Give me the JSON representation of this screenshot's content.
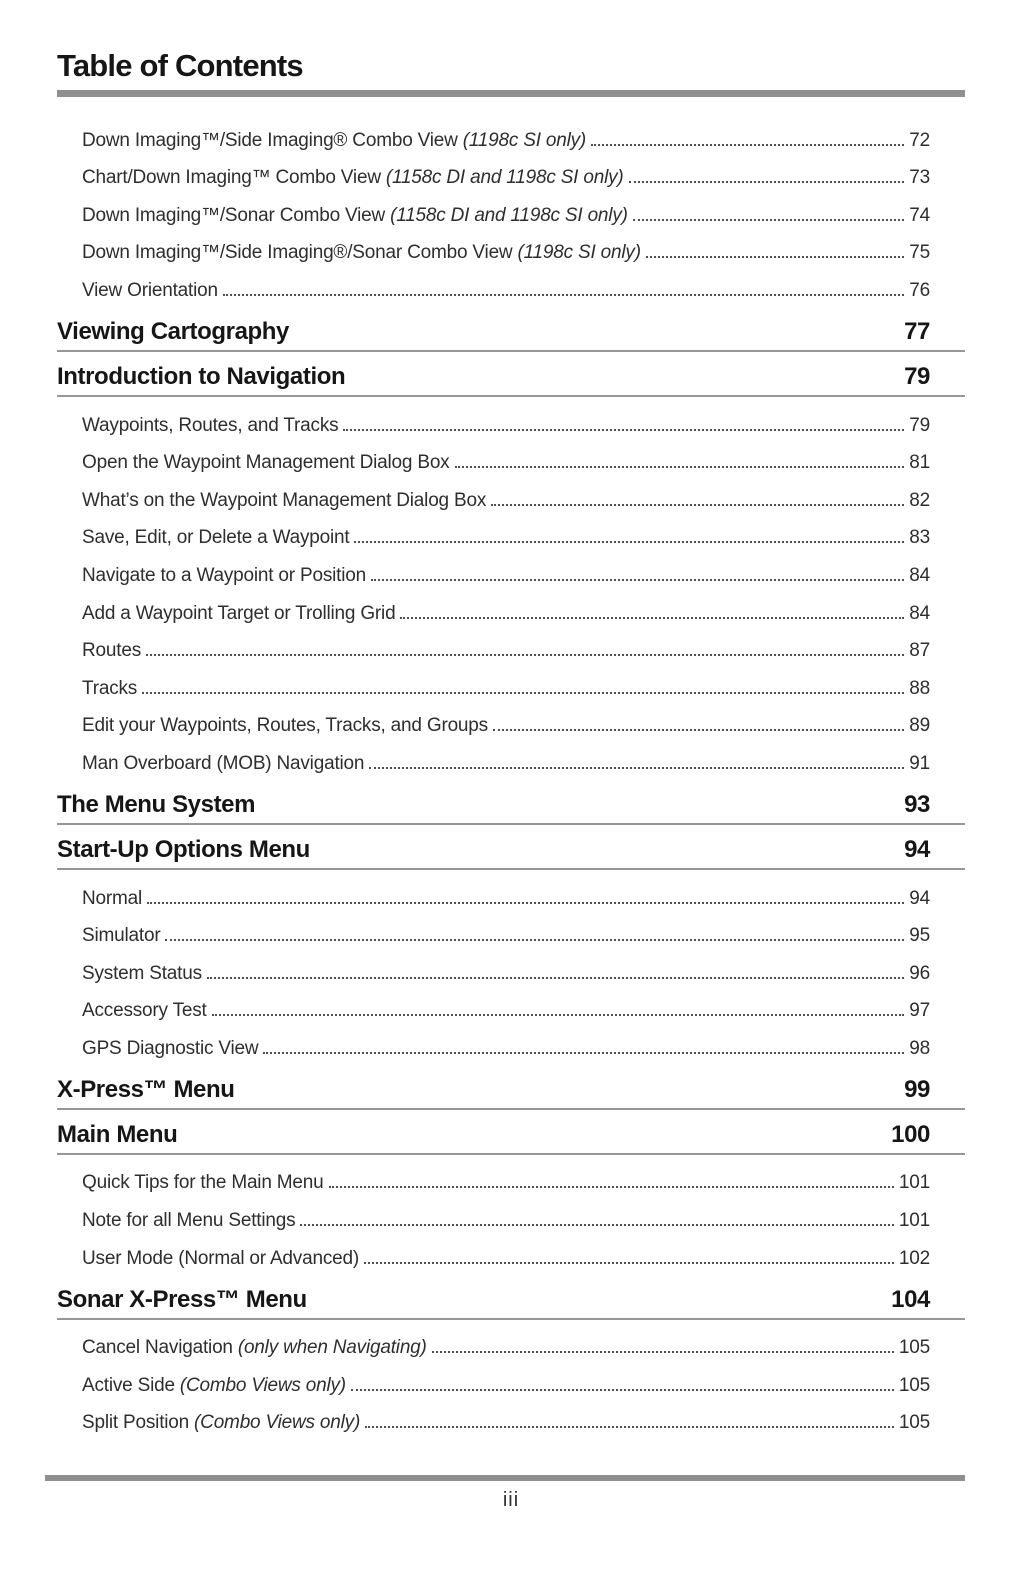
{
  "page": {
    "title": "Table of Contents",
    "footer_page_number": "iii"
  },
  "colors": {
    "rule_gray": "#8f8f8f",
    "text_black": "#161616",
    "entry_text": "#2e2e2e"
  },
  "toc": {
    "entries": [
      {
        "label": "Down Imaging™/Side Imaging® Combo View",
        "note": "(1198c SI only)",
        "page": "72"
      },
      {
        "label": "Chart/Down Imaging™ Combo View",
        "note": "(1158c DI and 1198c SI only)",
        "page": "73"
      },
      {
        "label": "Down Imaging™/Sonar Combo View",
        "note": "(1158c DI and 1198c SI only)",
        "page": "74"
      },
      {
        "label": "Down Imaging™/Side Imaging®/Sonar Combo View",
        "note": "(1198c SI only)",
        "page": "75"
      },
      {
        "label": "View Orientation",
        "note": "",
        "page": "76"
      },
      {
        "label": "Waypoints, Routes, and Tracks",
        "note": "",
        "page": "79"
      },
      {
        "label": "Open the Waypoint Management Dialog Box",
        "note": "",
        "page": "81"
      },
      {
        "label": "What’s on the Waypoint Management Dialog Box",
        "note": "",
        "page": "82"
      },
      {
        "label": "Save, Edit, or Delete a Waypoint",
        "note": "",
        "page": "83"
      },
      {
        "label": "Navigate to a Waypoint or Position",
        "note": "",
        "page": "84"
      },
      {
        "label": "Add a Waypoint Target or Trolling Grid",
        "note": "",
        "page": "84"
      },
      {
        "label": "Routes",
        "note": "",
        "page": "87"
      },
      {
        "label": "Tracks",
        "note": "",
        "page": "88"
      },
      {
        "label": "Edit your Waypoints, Routes, Tracks, and Groups",
        "note": "",
        "page": "89"
      },
      {
        "label": "Man Overboard (MOB) Navigation",
        "note": "",
        "page": "91"
      },
      {
        "label": "Normal",
        "note": "",
        "page": "94"
      },
      {
        "label": "Simulator",
        "note": "",
        "page": "95"
      },
      {
        "label": "System Status",
        "note": "",
        "page": "96"
      },
      {
        "label": "Accessory Test",
        "note": "",
        "page": "97"
      },
      {
        "label": "GPS Diagnostic View",
        "note": "",
        "page": "98"
      },
      {
        "label": "Quick Tips for the Main Menu",
        "note": "",
        "page": "101"
      },
      {
        "label": "Note for all Menu Settings",
        "note": "",
        "page": "101"
      },
      {
        "label": "User Mode (Normal or Advanced)",
        "note": "",
        "page": "102"
      },
      {
        "label": "Cancel Navigation",
        "note": "(only when Navigating)",
        "page": "105"
      },
      {
        "label": "Active Side",
        "note": "(Combo Views only)",
        "page": "105"
      },
      {
        "label": "Split Position",
        "note": "(Combo Views only)",
        "page": "105"
      }
    ],
    "sections": [
      {
        "title": "Viewing Cartography",
        "page": "77"
      },
      {
        "title": "Introduction to Navigation",
        "page": "79"
      },
      {
        "title": "The Menu System",
        "page": "93"
      },
      {
        "title": "Start-Up Options Menu",
        "page": "94"
      },
      {
        "title": "X-Press™ Menu",
        "page": "99"
      },
      {
        "title": "Main Menu",
        "page": "100"
      },
      {
        "title": "Sonar X-Press™ Menu",
        "page": "104"
      }
    ]
  }
}
